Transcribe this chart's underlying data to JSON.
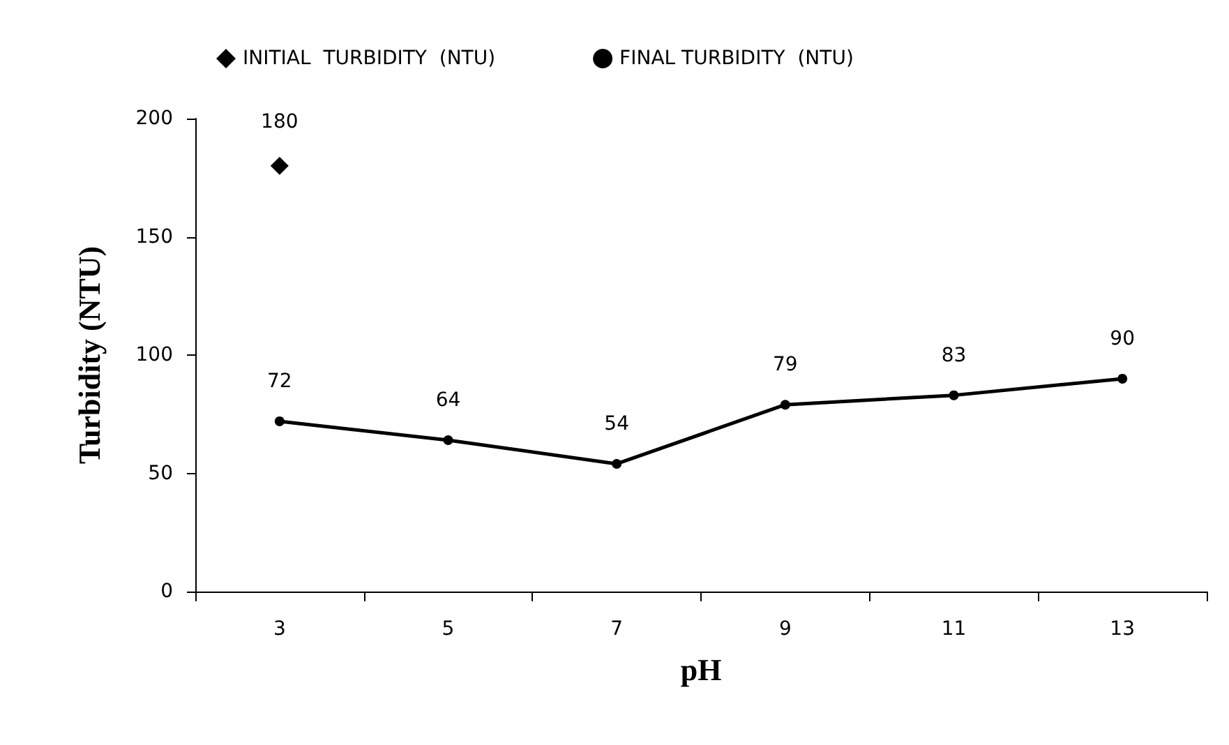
{
  "chart_data": {
    "type": "line",
    "xlabel": "pH",
    "ylabel": "Turbidity (NTU)",
    "categories": [
      "3",
      "5",
      "7",
      "9",
      "11",
      "13"
    ],
    "series": [
      {
        "name": "INITIAL  TURBIDITY  (NTU)",
        "type": "scatter",
        "marker": "diamond",
        "color": "#000000",
        "values": [
          180,
          null,
          null,
          null,
          null,
          null
        ]
      },
      {
        "name": "FINAL TURBIDITY  (NTU)",
        "type": "line",
        "marker": "circle",
        "color": "#000000",
        "values": [
          72,
          64,
          54,
          79,
          83,
          90
        ]
      }
    ],
    "ylim": [
      0,
      200
    ],
    "yticks": [
      0,
      50,
      100,
      150,
      200
    ],
    "grid": false,
    "legend": "top",
    "data_labels": true
  }
}
